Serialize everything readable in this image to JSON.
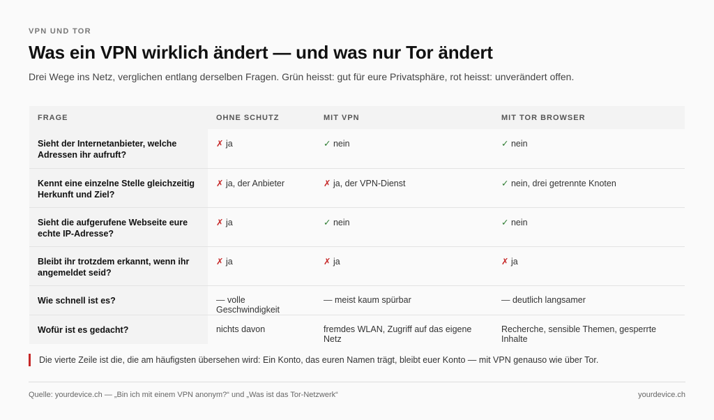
{
  "kicker": "VPN UND TOR",
  "title": "Was ein VPN wirklich ändert — und was nur Tor ändert",
  "subtitle": "Drei Wege ins Netz, verglichen entlang derselben Fragen. Grün heisst: gut für eure Privatsphäre, rot heisst: unverändert offen.",
  "table": {
    "headers": [
      "FRAGE",
      "OHNE SCHUTZ",
      "MIT VPN",
      "MIT TOR BROWSER"
    ],
    "rows": [
      {
        "question": "Sieht der Internetanbieter, welche Adressen ihr aufruft?",
        "cells": [
          {
            "mark": "✗",
            "status": "bad",
            "text": "ja"
          },
          {
            "mark": "✓",
            "status": "good",
            "text": "nein"
          },
          {
            "mark": "✓",
            "status": "good",
            "text": "nein"
          }
        ]
      },
      {
        "question": "Kennt eine einzelne Stelle gleichzeitig Herkunft und Ziel?",
        "cells": [
          {
            "mark": "✗",
            "status": "bad",
            "text": "ja, der Anbieter"
          },
          {
            "mark": "✗",
            "status": "bad",
            "text": "ja, der VPN-Dienst"
          },
          {
            "mark": "✓",
            "status": "good",
            "text": "nein, drei getrennte Knoten"
          }
        ]
      },
      {
        "question": "Sieht die aufgerufene Webseite eure echte IP-Adresse?",
        "cells": [
          {
            "mark": "✗",
            "status": "bad",
            "text": "ja"
          },
          {
            "mark": "✓",
            "status": "good",
            "text": "nein"
          },
          {
            "mark": "✓",
            "status": "good",
            "text": "nein"
          }
        ]
      },
      {
        "question": "Bleibt ihr trotzdem erkannt, wenn ihr angemeldet seid?",
        "cells": [
          {
            "mark": "✗",
            "status": "bad",
            "text": "ja"
          },
          {
            "mark": "✗",
            "status": "bad",
            "text": "ja"
          },
          {
            "mark": "✗",
            "status": "bad",
            "text": "ja"
          }
        ]
      },
      {
        "question": "Wie schnell ist es?",
        "cells": [
          {
            "mark": "—",
            "status": "neutral",
            "text": "volle Geschwindigkeit"
          },
          {
            "mark": "—",
            "status": "neutral",
            "text": "meist kaum spürbar"
          },
          {
            "mark": "—",
            "status": "neutral",
            "text": "deutlich langsamer"
          }
        ]
      },
      {
        "question": "Wofür ist es gedacht?",
        "cells": [
          {
            "mark": "",
            "status": "neutral",
            "text": "nichts davon"
          },
          {
            "mark": "",
            "status": "neutral",
            "text": "fremdes WLAN, Zugriff auf das eigene Netz"
          },
          {
            "mark": "",
            "status": "neutral",
            "text": "Recherche, sensible Themen, gesperrte Inhalte"
          }
        ]
      }
    ]
  },
  "note": "Die vierte Zeile ist die, die am häufigsten übersehen wird: Ein Konto, das euren Namen trägt, bleibt euer Konto — mit VPN genauso wie über Tor.",
  "footer": {
    "source": "Quelle: yourdevice.ch — „Bin ich mit einem VPN anonym?“ und „Was ist das Tor-Netzwerk“",
    "site": "yourdevice.ch"
  },
  "colors": {
    "good": "#2e7d32",
    "bad": "#c62828",
    "accent": "#c62828"
  }
}
